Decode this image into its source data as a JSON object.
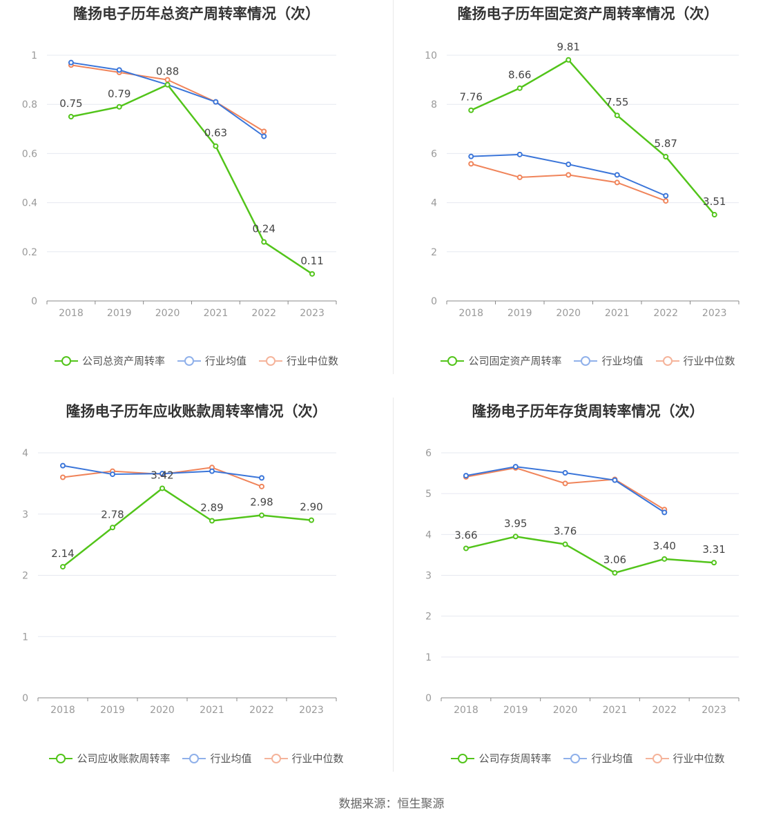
{
  "legend_common": {
    "avg": "行业均值",
    "median": "行业中位数"
  },
  "colors": {
    "company": "#52c41a",
    "avg": "#3a75d9",
    "median": "#f0845a",
    "grid": "#e6e8f0",
    "axis": "#999999",
    "tick": "#999999",
    "label": "#444444"
  },
  "source": "数据来源：恒生聚源",
  "chart_data": [
    {
      "type": "line",
      "title": "隆扬电子历年总资产周转率情况（次）",
      "categories": [
        "2018",
        "2019",
        "2020",
        "2021",
        "2022",
        "2023"
      ],
      "ylim": [
        0,
        1
      ],
      "yticks": [
        0,
        0.2,
        0.4,
        0.6,
        0.8,
        1
      ],
      "ytick_labels": [
        "0",
        "0.2",
        "0.4",
        "0.6",
        "0.8",
        "1"
      ],
      "series": [
        {
          "name": "公司总资产周转率",
          "role": "company",
          "values": [
            0.75,
            0.79,
            0.88,
            0.63,
            0.24,
            0.11
          ],
          "labels": [
            "0.75",
            "0.79",
            "0.88",
            "0.63",
            "0.24",
            "0.11"
          ]
        },
        {
          "name": "行业均值",
          "role": "avg",
          "values": [
            0.97,
            0.94,
            0.88,
            0.81,
            0.67,
            null
          ]
        },
        {
          "name": "行业中位数",
          "role": "median",
          "values": [
            0.96,
            0.93,
            0.9,
            0.81,
            0.69,
            null
          ]
        }
      ]
    },
    {
      "type": "line",
      "title": "隆扬电子历年固定资产周转率情况（次）",
      "categories": [
        "2018",
        "2019",
        "2020",
        "2021",
        "2022",
        "2023"
      ],
      "ylim": [
        0,
        10
      ],
      "yticks": [
        0,
        2,
        4,
        6,
        8,
        10
      ],
      "ytick_labels": [
        "0",
        "2",
        "4",
        "6",
        "8",
        "10"
      ],
      "series": [
        {
          "name": "公司固定资产周转率",
          "role": "company",
          "values": [
            7.76,
            8.66,
            9.81,
            7.55,
            5.87,
            3.51
          ],
          "labels": [
            "7.76",
            "8.66",
            "9.81",
            "7.55",
            "5.87",
            "3.51"
          ]
        },
        {
          "name": "行业均值",
          "role": "avg",
          "values": [
            5.88,
            5.96,
            5.56,
            5.13,
            4.28,
            null
          ]
        },
        {
          "name": "行业中位数",
          "role": "median",
          "values": [
            5.58,
            5.03,
            5.13,
            4.82,
            4.07,
            null
          ]
        }
      ]
    },
    {
      "type": "line",
      "title": "隆扬电子历年应收账款周转率情况（次）",
      "categories": [
        "2018",
        "2019",
        "2020",
        "2021",
        "2022",
        "2023"
      ],
      "ylim": [
        0,
        4
      ],
      "yticks": [
        0,
        1,
        2,
        3,
        4
      ],
      "ytick_labels": [
        "0",
        "1",
        "2",
        "3",
        "4"
      ],
      "series": [
        {
          "name": "公司应收账款周转率",
          "role": "company",
          "values": [
            2.14,
            2.78,
            3.42,
            2.89,
            2.98,
            2.9
          ],
          "labels": [
            "2.14",
            "2.78",
            "3.42",
            "2.89",
            "2.98",
            "2.90"
          ]
        },
        {
          "name": "行业均值",
          "role": "avg",
          "values": [
            3.79,
            3.65,
            3.66,
            3.7,
            3.59,
            null
          ]
        },
        {
          "name": "行业中位数",
          "role": "median",
          "values": [
            3.6,
            3.7,
            3.65,
            3.76,
            3.45,
            null
          ]
        }
      ]
    },
    {
      "type": "line",
      "title": "隆扬电子历年存货周转率情况（次）",
      "categories": [
        "2018",
        "2019",
        "2020",
        "2021",
        "2022",
        "2023"
      ],
      "ylim": [
        0,
        6
      ],
      "yticks": [
        0,
        1,
        2,
        3,
        4,
        5,
        6
      ],
      "ytick_labels": [
        "0",
        "1",
        "2",
        "3",
        "4",
        "5",
        "6"
      ],
      "series": [
        {
          "name": "公司存货周转率",
          "role": "company",
          "values": [
            3.66,
            3.95,
            3.76,
            3.06,
            3.4,
            3.31
          ],
          "labels": [
            "3.66",
            "3.95",
            "3.76",
            "3.06",
            "3.40",
            "3.31"
          ]
        },
        {
          "name": "行业均值",
          "role": "avg",
          "values": [
            5.44,
            5.66,
            5.51,
            5.33,
            4.54,
            null
          ]
        },
        {
          "name": "行业中位数",
          "role": "median",
          "values": [
            5.41,
            5.63,
            5.25,
            5.35,
            4.61,
            null
          ]
        }
      ]
    }
  ]
}
